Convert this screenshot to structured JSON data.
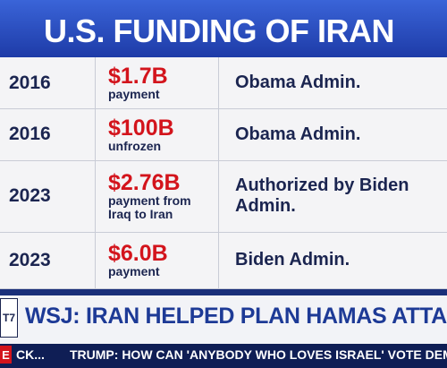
{
  "header": {
    "title": "U.S. FUNDING OF IRAN"
  },
  "table": {
    "rows": [
      {
        "year": "2016",
        "amount": "$1.7B",
        "note": "payment",
        "description": "Obama Admin."
      },
      {
        "year": "2016",
        "amount": "$100B",
        "note": "unfrozen",
        "description": "Obama Admin."
      },
      {
        "year": "2023",
        "amount": "$2.76B",
        "note": "payment from Iraq to Iran",
        "description": "Authorized by Biden Admin."
      },
      {
        "year": "2023",
        "amount": "$6.0B",
        "note": "payment",
        "description": "Biden Admin."
      }
    ]
  },
  "banner": {
    "badge": "T7",
    "headline": "WSJ: IRAN HELPED PLAN HAMAS ATTACK ON I"
  },
  "ticker": {
    "tag": "E",
    "left": "CK...",
    "text": "TRUMP: HOW CAN 'ANYBODY WHO LOVES ISRAEL' VOTE DEMOC"
  }
}
